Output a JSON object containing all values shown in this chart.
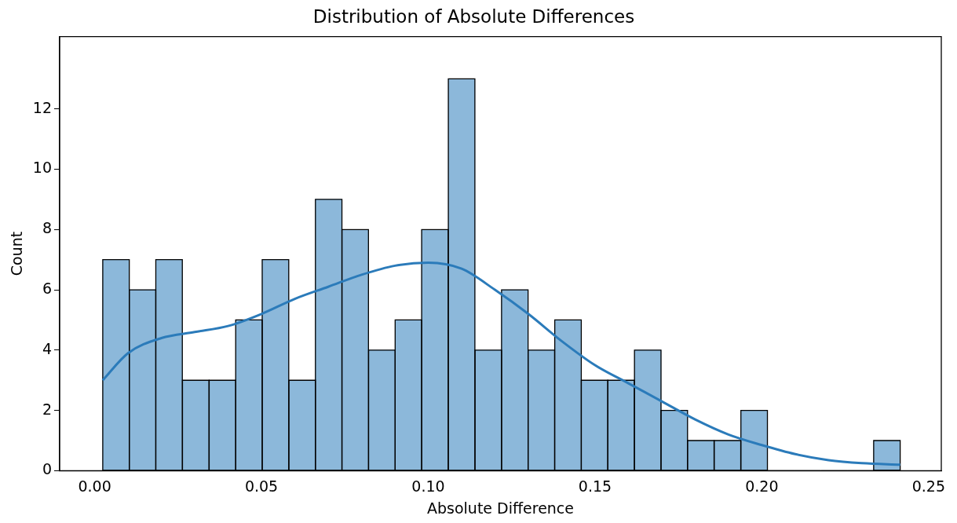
{
  "chart_data": {
    "type": "histogram",
    "title": "Distribution of Absolute Differences",
    "xlabel": "Absolute Difference",
    "ylabel": "Count",
    "xlim": [
      -0.0105,
      0.2538
    ],
    "ylim": [
      0,
      14.4
    ],
    "xticks": [
      {
        "value": 0,
        "label": "0.00"
      },
      {
        "value": 0.05,
        "label": "0.05"
      },
      {
        "value": 0.1,
        "label": "0.10"
      },
      {
        "value": 0.15,
        "label": "0.15"
      },
      {
        "value": 0.2,
        "label": "0.20"
      },
      {
        "value": 0.25,
        "label": "0.25"
      }
    ],
    "yticks": [
      0,
      2,
      4,
      6,
      8,
      10,
      12
    ],
    "grid": false,
    "legend": false,
    "color": "#8cb8da",
    "bins": [
      0.0024,
      0.0104,
      0.0183,
      0.0263,
      0.0343,
      0.0423,
      0.0502,
      0.0582,
      0.0662,
      0.0741,
      0.0821,
      0.0901,
      0.098,
      0.106,
      0.114,
      0.122,
      0.1299,
      0.1379,
      0.1459,
      0.1538,
      0.1618,
      0.1698,
      0.1777,
      0.1857,
      0.1937,
      0.2017,
      0.2096,
      0.2176,
      0.2256,
      0.2335,
      0.2415
    ],
    "values": [
      7,
      6,
      7,
      3,
      3,
      5,
      7,
      3,
      9,
      8,
      4,
      5,
      8,
      13,
      4,
      6,
      4,
      5,
      3,
      3,
      4,
      2,
      1,
      1,
      2,
      0,
      0,
      0,
      0,
      1
    ],
    "series": [
      {
        "type": "line",
        "color": "#2b7bba",
        "x": [
          0.0024,
          0.01,
          0.02,
          0.03,
          0.04,
          0.05,
          0.06,
          0.07,
          0.08,
          0.09,
          0.1,
          0.11,
          0.12,
          0.13,
          0.14,
          0.15,
          0.16,
          0.17,
          0.18,
          0.19,
          0.2,
          0.21,
          0.22,
          0.23,
          0.2415
        ],
        "values": [
          3,
          3.9,
          4.4,
          4.6,
          4.8,
          5.2,
          5.7,
          6.1,
          6.5,
          6.8,
          6.9,
          6.7,
          6.0,
          5.2,
          4.3,
          3.5,
          2.9,
          2.3,
          1.7,
          1.2,
          0.85,
          0.55,
          0.35,
          0.25,
          0.2
        ]
      }
    ]
  }
}
